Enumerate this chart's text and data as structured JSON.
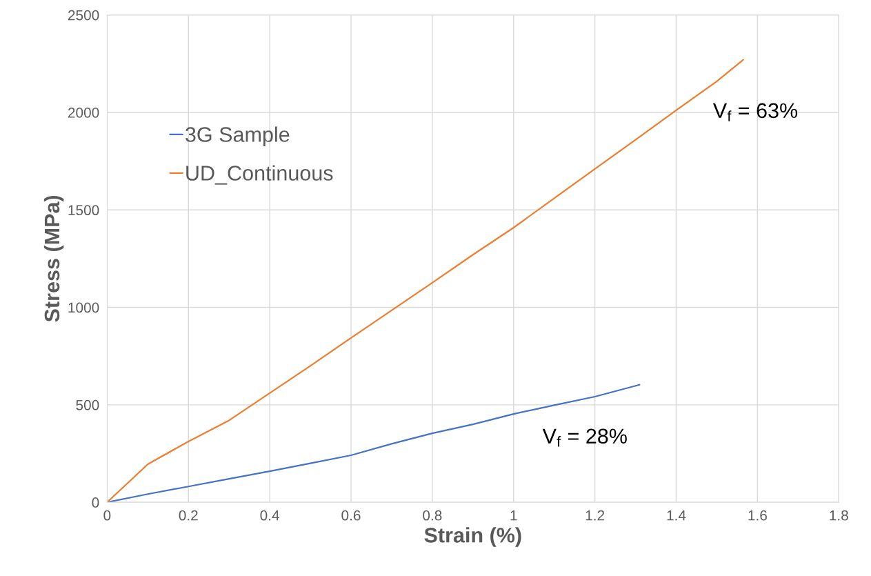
{
  "chart_data": {
    "type": "line",
    "xlabel": "Strain (%)",
    "ylabel": "Stress (MPa)",
    "series": [
      {
        "name": "3G Sample",
        "color": "#4472c4",
        "x": [
          0,
          0.1,
          0.2,
          0.3,
          0.4,
          0.5,
          0.6,
          0.7,
          0.8,
          0.9,
          1.0,
          1.1,
          1.2,
          1.31
        ],
        "values": [
          0,
          42,
          81,
          120,
          159,
          200,
          241,
          300,
          354,
          400,
          453,
          498,
          542,
          603
        ]
      },
      {
        "name": "UD_Continuous",
        "color": "#ed7d31",
        "x": [
          0,
          0.1,
          0.2,
          0.3,
          0.4,
          0.5,
          0.6,
          0.7,
          0.8,
          0.9,
          1.0,
          1.1,
          1.2,
          1.3,
          1.4,
          1.5,
          1.565
        ],
        "values": [
          0,
          195,
          312,
          420,
          560,
          700,
          843,
          985,
          1126,
          1270,
          1409,
          1560,
          1710,
          1860,
          2011,
          2160,
          2270
        ]
      }
    ],
    "annotations": [
      "V$_{f}$ = 63%",
      "V$_{f}$ = 28%"
    ],
    "xlim": [
      0,
      1.8
    ],
    "xticks": [
      0,
      0.2,
      0.4,
      0.6,
      0.8,
      1,
      1.2,
      1.4,
      1.6,
      1.8
    ],
    "ylim": [
      0,
      2500
    ],
    "yticks": [
      0,
      500,
      1000,
      1500,
      2000,
      2500
    ],
    "grid": true,
    "legend": "top left",
    "marker": "none",
    "line_style": "solid"
  }
}
